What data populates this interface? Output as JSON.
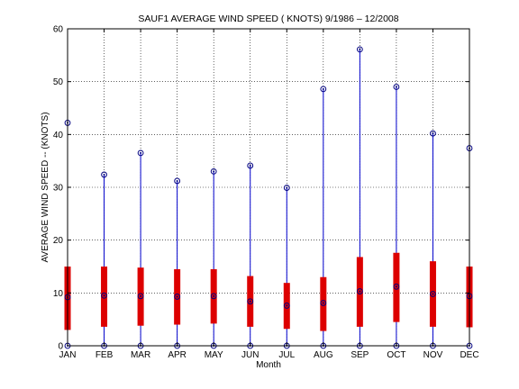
{
  "chart_data": {
    "type": "box",
    "title": "SAUF1  AVERAGE WIND SPEED ( KNOTS) 9/1986 – 12/2008",
    "xlabel": "Month",
    "ylabel": "AVERAGE WIND SPEED -- (KNOTS)",
    "ylim": [
      0,
      60
    ],
    "yticks": [
      0,
      10,
      20,
      30,
      40,
      50,
      60
    ],
    "grid": true,
    "categories": [
      "JAN",
      "FEB",
      "MAR",
      "APR",
      "MAY",
      "JUN",
      "JUL",
      "AUG",
      "SEP",
      "OCT",
      "NOV",
      "DEC"
    ],
    "series": [
      {
        "stat": "min",
        "values": [
          0,
          0,
          0,
          0,
          0,
          0,
          0,
          0,
          0,
          0,
          0,
          0
        ]
      },
      {
        "stat": "q1",
        "values": [
          3.0,
          3.6,
          3.8,
          4.0,
          4.2,
          3.6,
          3.2,
          2.8,
          3.6,
          4.5,
          3.6,
          3.5
        ]
      },
      {
        "stat": "mean",
        "values": [
          9.2,
          9.5,
          9.4,
          9.3,
          9.4,
          8.4,
          7.6,
          8.1,
          10.3,
          11.2,
          9.8,
          9.4
        ]
      },
      {
        "stat": "q3",
        "values": [
          15.0,
          15.0,
          14.8,
          14.5,
          14.5,
          13.2,
          11.9,
          13.0,
          16.8,
          17.6,
          16.0,
          15.0
        ]
      },
      {
        "stat": "max",
        "values": [
          42.2,
          32.4,
          36.5,
          31.2,
          33.0,
          34.1,
          29.9,
          48.6,
          56.1,
          49.0,
          40.2,
          37.4
        ]
      }
    ],
    "colors": {
      "whisker": "#0000cc",
      "box": "#dd0000",
      "marker": "#000080",
      "grid": "#000000"
    }
  }
}
